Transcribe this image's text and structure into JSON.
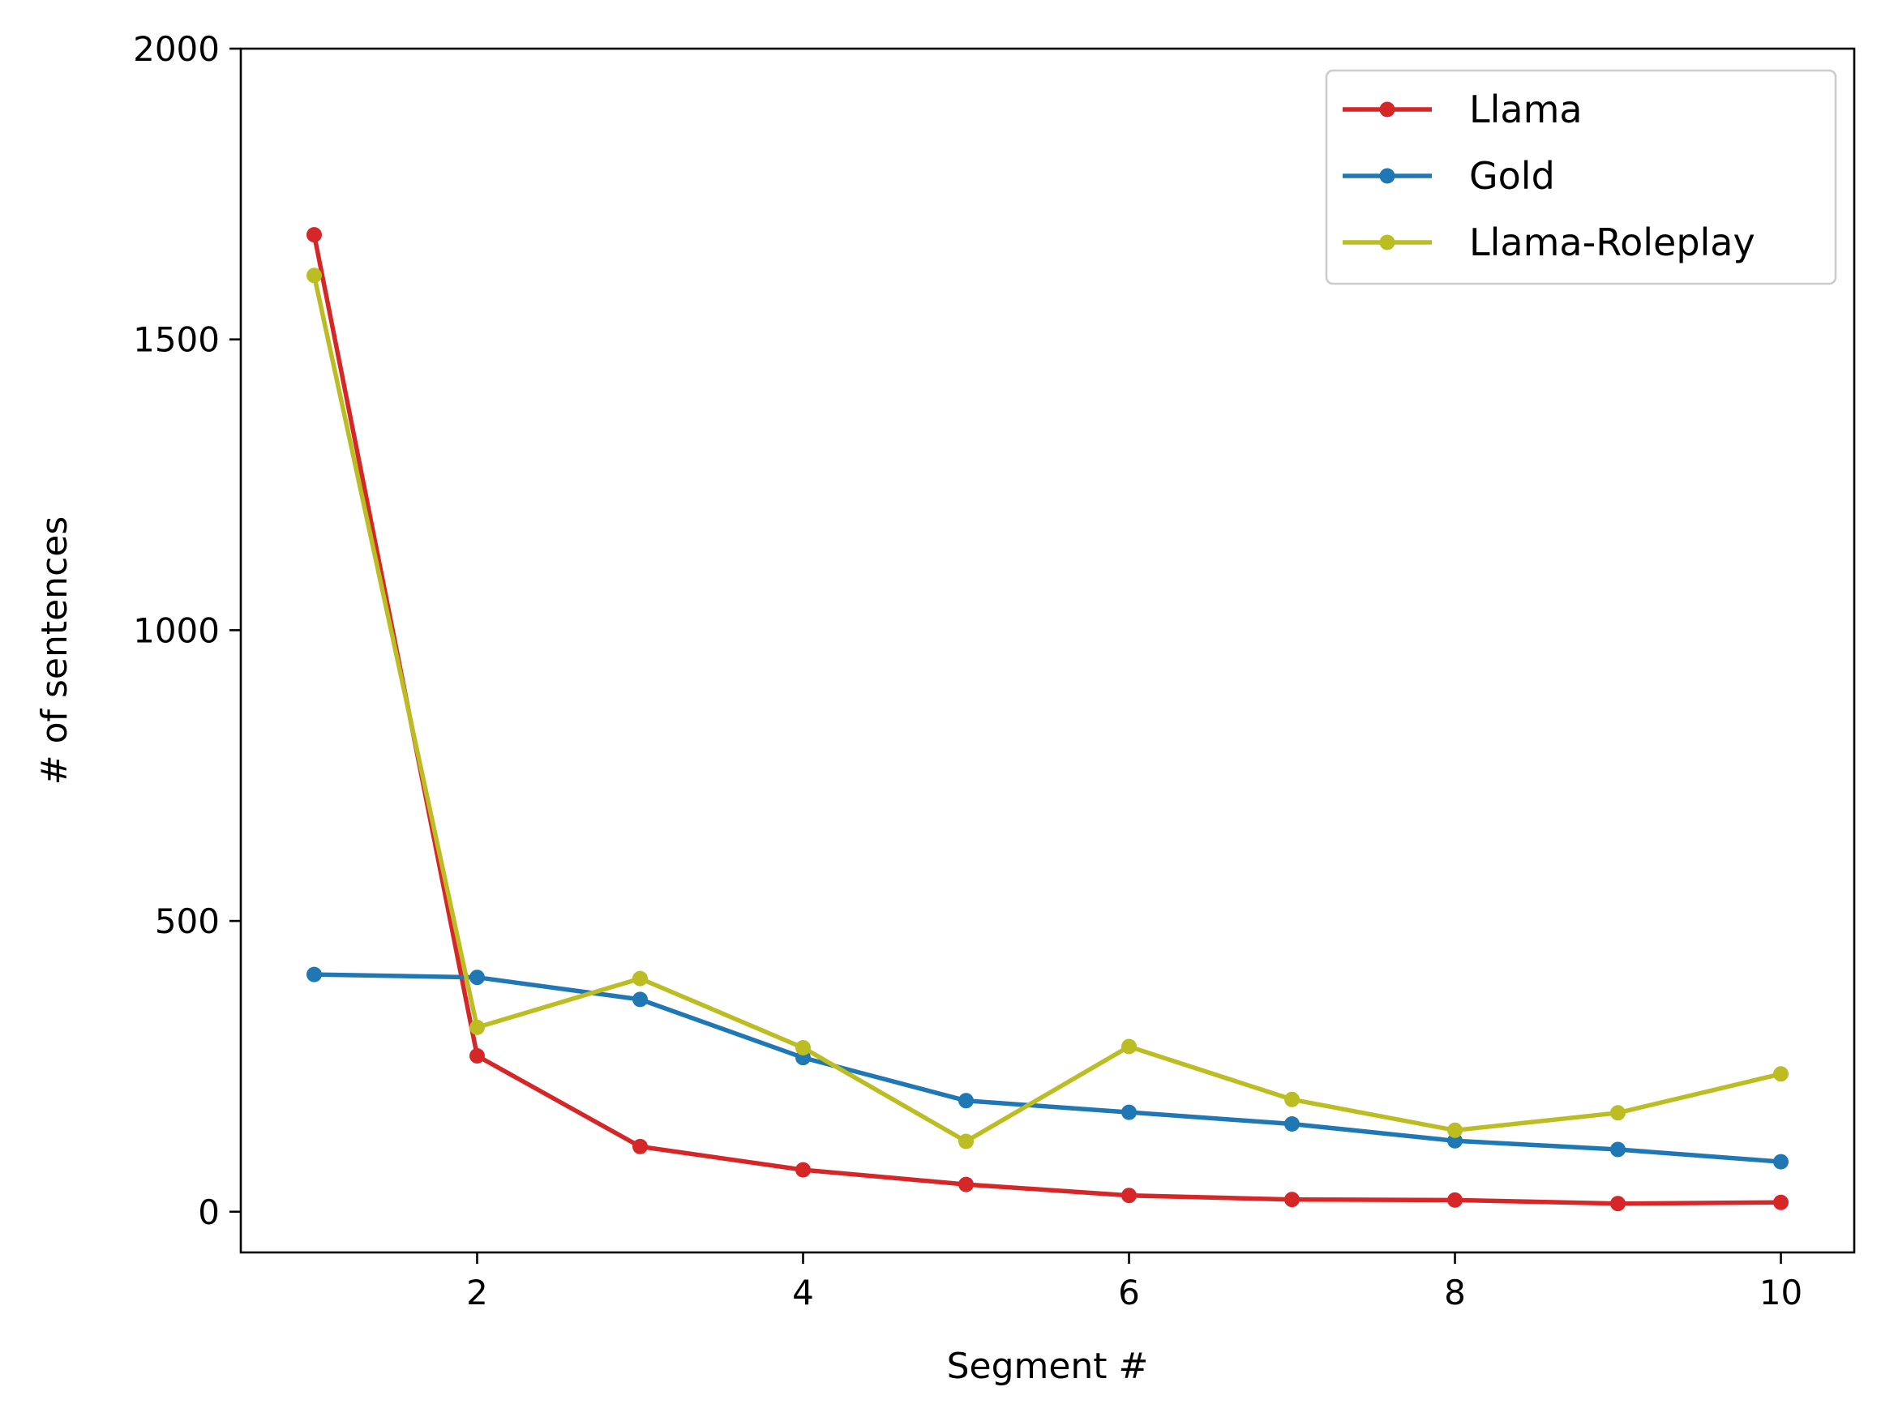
{
  "chart_data": {
    "type": "line",
    "xlabel": "Segment #",
    "ylabel": "# of sentences",
    "xlim": [
      0.55,
      10.45
    ],
    "ylim": [
      -70,
      2000
    ],
    "xticks": [
      2,
      4,
      6,
      8,
      10
    ],
    "yticks": [
      0,
      500,
      1000,
      1500,
      2000
    ],
    "grid": false,
    "legend_position": "top-right",
    "x": [
      1,
      2,
      3,
      4,
      5,
      6,
      7,
      8,
      9,
      10
    ],
    "series": [
      {
        "name": "Llama",
        "color": "#d62728",
        "values": [
          1680,
          268,
          112,
          72,
          47,
          28,
          21,
          20,
          14,
          16
        ]
      },
      {
        "name": "Gold",
        "color": "#1f77b4",
        "values": [
          408,
          403,
          365,
          265,
          191,
          171,
          151,
          122,
          107,
          86
        ]
      },
      {
        "name": "Llama-Roleplay",
        "color": "#bcbd22",
        "values": [
          1610,
          317,
          401,
          282,
          121,
          284,
          193,
          140,
          170,
          237
        ]
      }
    ]
  }
}
